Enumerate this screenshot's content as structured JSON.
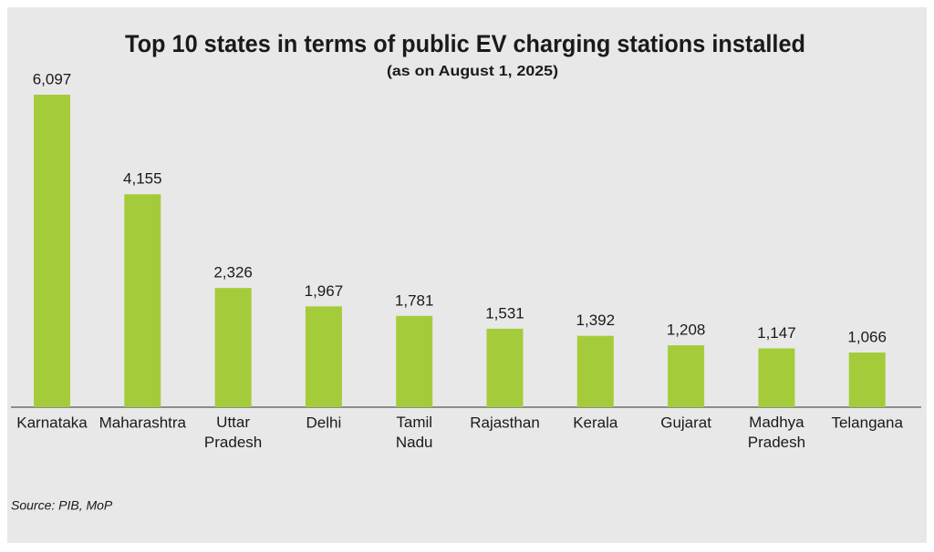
{
  "chart_data": {
    "type": "bar",
    "title": "Top 10 states in terms of public EV charging stations installed",
    "subtitle": "(as on August 1, 2025)",
    "categories": [
      "Karnataka",
      "Maharashtra",
      "Uttar Pradesh",
      "Delhi",
      "Tamil Nadu",
      "Rajasthan",
      "Kerala",
      "Gujarat",
      "Madhya Pradesh",
      "Telangana"
    ],
    "values": [
      6097,
      4155,
      2326,
      1967,
      1781,
      1531,
      1392,
      1208,
      1147,
      1066
    ],
    "value_labels": [
      "6,097",
      "4,155",
      "2,326",
      "1,967",
      "1,781",
      "1,531",
      "1,392",
      "1,208",
      "1,147",
      "1,066"
    ],
    "color": "#a4cc3a",
    "source": "Source: PIB, MoP"
  }
}
